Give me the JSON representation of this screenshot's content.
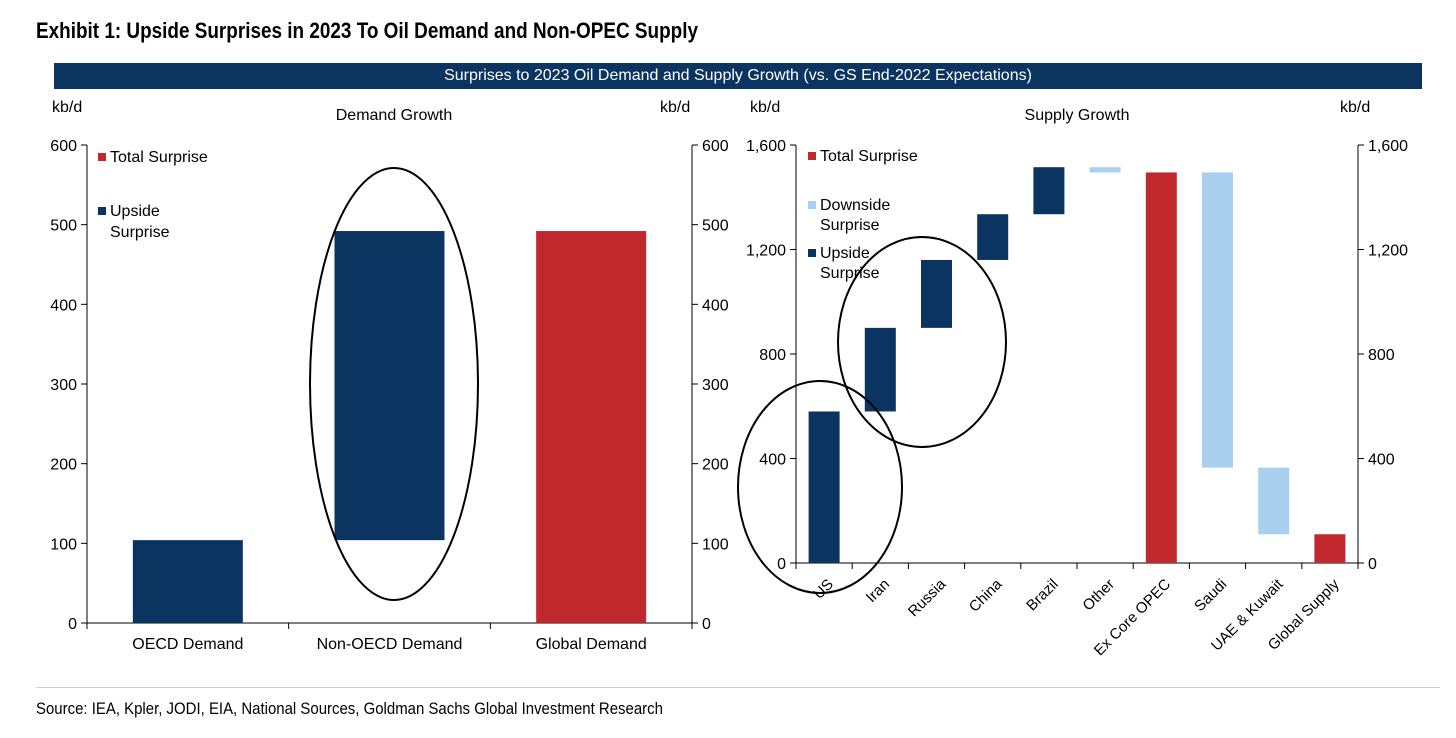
{
  "exhibit_title": "Exhibit 1: Upside Surprises in 2023 To Oil Demand and Non-OPEC Supply",
  "banner": "Surprises to 2023 Oil Demand and Supply Growth (vs. GS End-2022 Expectations)",
  "source_note": "Source: IEA, Kpler, JODI, EIA, National Sources, Goldman Sachs Global Investment Research",
  "colors": {
    "upside": "#0b3460",
    "total": "#c0282d",
    "downside": "#a9d0ee",
    "banner": "#0b3460"
  },
  "chart_data": [
    {
      "type": "bar",
      "title": "Demand Growth",
      "ylabel_left": "kb/d",
      "ylabel_right": "kb/d",
      "ylim": [
        0,
        600
      ],
      "yticks": [
        0,
        100,
        200,
        300,
        400,
        500,
        600
      ],
      "ytick_labels": [
        "0",
        "100",
        "200",
        "300",
        "400",
        "500",
        "600"
      ],
      "legend_position": "top-left",
      "legend": [
        {
          "key": "total",
          "label_lines": [
            "Total Surprise"
          ]
        },
        {
          "key": "upside",
          "label_lines": [
            "Upside",
            "Surprise"
          ]
        }
      ],
      "categories": [
        "OECD Demand",
        "Non-OECD Demand",
        "Global Demand"
      ],
      "bars": [
        {
          "category": "OECD Demand",
          "base": 0,
          "top": 104,
          "kind": "upside"
        },
        {
          "category": "Non-OECD Demand",
          "base": 104,
          "top": 492,
          "kind": "upside"
        },
        {
          "category": "Global Demand",
          "base": 0,
          "top": 492,
          "kind": "total"
        }
      ],
      "circled_categories": [
        "Non-OECD Demand"
      ]
    },
    {
      "type": "bar",
      "title": "Supply Growth",
      "ylabel_left": "kb/d",
      "ylabel_right": "kb/d",
      "ylim": [
        0,
        1600
      ],
      "yticks": [
        0,
        400,
        800,
        1200,
        1600
      ],
      "ytick_labels": [
        "0",
        "400",
        "800",
        "1,200",
        "1,600"
      ],
      "legend_position": "top-left",
      "legend": [
        {
          "key": "total",
          "label_lines": [
            "Total Surprise"
          ]
        },
        {
          "key": "downside",
          "label_lines": [
            "Downside",
            "Surprise"
          ]
        },
        {
          "key": "upside",
          "label_lines": [
            "Upside",
            "Surprise"
          ]
        }
      ],
      "categories": [
        "US",
        "Iran",
        "Russia",
        "China",
        "Brazil",
        "Other",
        "Ex Core OPEC",
        "Saudi",
        "UAE & Kuwait",
        "Global Supply"
      ],
      "bars": [
        {
          "category": "US",
          "base": 0,
          "top": 580,
          "kind": "upside"
        },
        {
          "category": "Iran",
          "base": 580,
          "top": 900,
          "kind": "upside"
        },
        {
          "category": "Russia",
          "base": 900,
          "top": 1160,
          "kind": "upside"
        },
        {
          "category": "China",
          "base": 1160,
          "top": 1335,
          "kind": "upside"
        },
        {
          "category": "Brazil",
          "base": 1335,
          "top": 1515,
          "kind": "upside"
        },
        {
          "category": "Other",
          "base": 1495,
          "top": 1515,
          "kind": "downside"
        },
        {
          "category": "Ex Core OPEC",
          "base": 0,
          "top": 1495,
          "kind": "total"
        },
        {
          "category": "Saudi",
          "base": 365,
          "top": 1495,
          "kind": "downside"
        },
        {
          "category": "UAE & Kuwait",
          "base": 110,
          "top": 365,
          "kind": "downside"
        },
        {
          "category": "Global Supply",
          "base": 0,
          "top": 110,
          "kind": "total"
        }
      ],
      "circled_categories": [
        "US",
        "Iran",
        "Russia"
      ]
    }
  ]
}
